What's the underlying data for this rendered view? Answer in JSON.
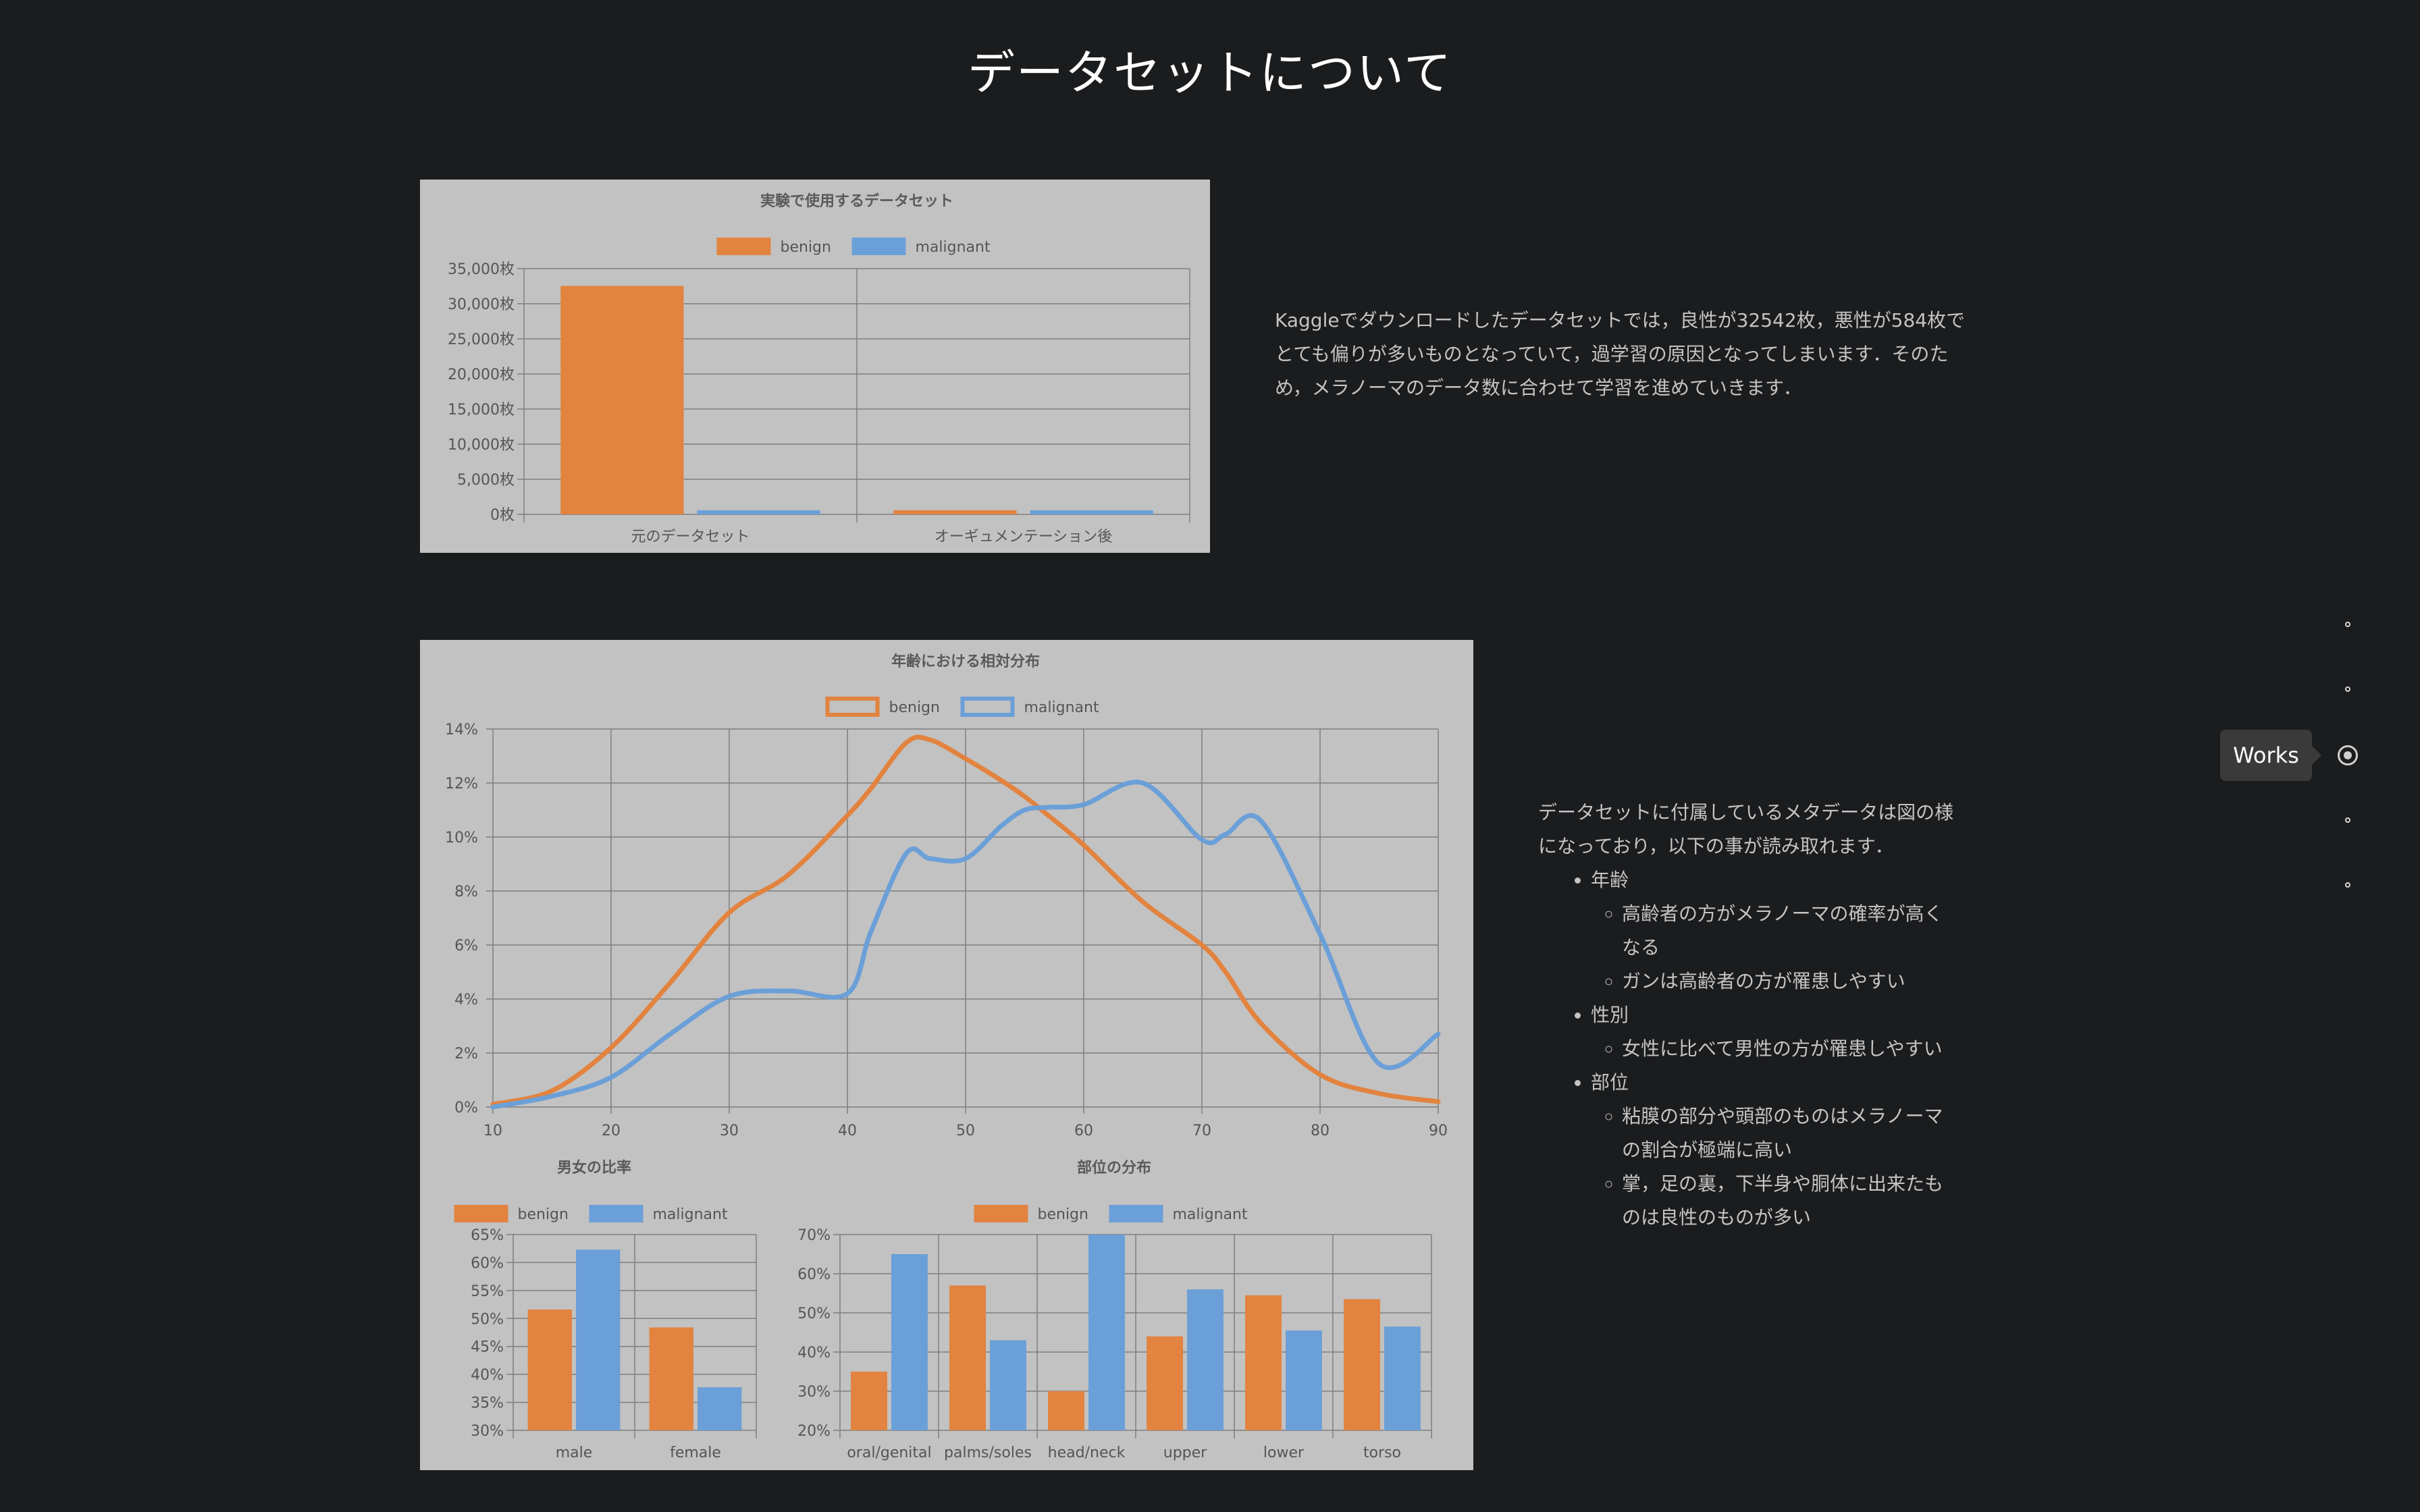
{
  "page": {
    "title": "データセットについて"
  },
  "section1": {
    "description": "Kaggleでダウンロードしたデータセットでは，良性が32542枚，悪性が584枚でとても偏りが多いものとなっていて，過学習の原因となってしまいます．そのため，メラノーマのデータ数に合わせて学習を進めていきます．"
  },
  "section2": {
    "description": "データセットに付属しているメタデータは図の様になっており，以下の事が読み取れます．",
    "bullets": [
      {
        "label": "年齢",
        "items": [
          "高齢者の方がメラノーマの確率が高くなる",
          "ガンは高齢者の方が罹患しやすい"
        ]
      },
      {
        "label": "性別",
        "items": [
          "女性に比べて男性の方が罹患しやすい"
        ]
      },
      {
        "label": "部位",
        "items": [
          "粘膜の部分や頭部のものはメラノーマの割合が極端に高い",
          "掌，足の裏，下半身や胴体に出来たものは良性のものが多い"
        ]
      }
    ]
  },
  "nav": {
    "tooltip": "Works",
    "dots": 5,
    "active_index": 2
  },
  "colors": {
    "benign": "#e2833f",
    "malignant": "#6b9fd8",
    "card_bg": "#c2c2c2"
  },
  "chart_data": [
    {
      "type": "bar",
      "title": "実験で使用するデータセット",
      "categories": [
        "元のデータセット",
        "オーギュメンテーション後"
      ],
      "series": [
        {
          "name": "benign",
          "values": [
            32542,
            584
          ]
        },
        {
          "name": "malignant",
          "values": [
            584,
            584
          ]
        }
      ],
      "ylim": [
        0,
        35000
      ],
      "yticks": [
        "0枚",
        "5,000枚",
        "10,000枚",
        "15,000枚",
        "20,000枚",
        "25,000枚",
        "30,000枚",
        "35,000枚"
      ],
      "legend": "top"
    },
    {
      "type": "line",
      "title": "年齢における相対分布",
      "x": [
        10,
        15,
        20,
        25,
        30,
        35,
        40,
        42,
        45,
        47,
        50,
        53,
        55,
        57,
        60,
        65,
        70,
        72,
        75,
        80,
        85,
        90
      ],
      "series": [
        {
          "name": "benign",
          "values": [
            0.1,
            0.6,
            2.2,
            4.6,
            7.2,
            8.6,
            10.8,
            11.8,
            13.5,
            13.6,
            12.9,
            12.1,
            11.5,
            10.8,
            9.7,
            7.6,
            6.0,
            5.0,
            3.1,
            1.2,
            0.5,
            0.2
          ]
        },
        {
          "name": "malignant",
          "values": [
            0.0,
            0.4,
            1.1,
            2.7,
            4.1,
            4.3,
            4.2,
            6.5,
            9.4,
            9.2,
            9.2,
            10.4,
            11.0,
            11.1,
            11.2,
            12.0,
            9.9,
            10.1,
            10.6,
            6.4,
            1.6,
            2.7
          ]
        }
      ],
      "xlim": [
        10,
        90
      ],
      "ylim": [
        0,
        14
      ],
      "xticks": [
        "10",
        "20",
        "30",
        "40",
        "50",
        "60",
        "70",
        "80",
        "90"
      ],
      "yticks": [
        "0%",
        "2%",
        "4%",
        "6%",
        "8%",
        "10%",
        "12%",
        "14%"
      ],
      "legend": "top"
    },
    {
      "type": "bar",
      "title": "男女の比率",
      "categories": [
        "male",
        "female"
      ],
      "series": [
        {
          "name": "benign",
          "values": [
            51.6,
            48.4
          ]
        },
        {
          "name": "malignant",
          "values": [
            62.3,
            37.7
          ]
        }
      ],
      "ylim": [
        30,
        65
      ],
      "yticks": [
        "30%",
        "35%",
        "40%",
        "45%",
        "50%",
        "55%",
        "60%",
        "65%"
      ],
      "legend": "top"
    },
    {
      "type": "bar",
      "title": "部位の分布",
      "categories": [
        "oral/genital",
        "palms/soles",
        "head/neck",
        "upper",
        "lower",
        "torso"
      ],
      "series": [
        {
          "name": "benign",
          "values": [
            35,
            57,
            30,
            44,
            54.5,
            53.5
          ]
        },
        {
          "name": "malignant",
          "values": [
            65,
            43,
            70,
            56,
            45.5,
            46.5
          ]
        }
      ],
      "ylim": [
        20,
        70
      ],
      "yticks": [
        "20%",
        "30%",
        "40%",
        "50%",
        "60%",
        "70%"
      ],
      "legend": "top"
    }
  ]
}
